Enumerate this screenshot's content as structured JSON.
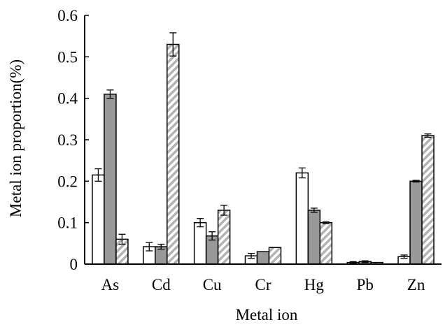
{
  "chart_data": {
    "type": "bar",
    "title": "",
    "xlabel": "Metal ion",
    "ylabel": "Metal ion proportion(%)",
    "ylim": [
      0,
      0.6
    ],
    "yticks": [
      "0",
      "0.1",
      "0.2",
      "0.3",
      "0.4",
      "0.5",
      "0.6"
    ],
    "categories": [
      "As",
      "Cd",
      "Cu",
      "Cr",
      "Hg",
      "Pb",
      "Zn"
    ],
    "grid": false,
    "legend": "none",
    "series": [
      {
        "fill": "white-outline",
        "values": [
          0.215,
          0.042,
          0.1,
          0.02,
          0.22,
          0.004,
          0.018
        ],
        "errors": [
          0.015,
          0.01,
          0.01,
          0.006,
          0.012,
          0.002,
          0.004
        ]
      },
      {
        "fill": "gray",
        "values": [
          0.41,
          0.042,
          0.068,
          0.03,
          0.13,
          0.006,
          0.2
        ],
        "errors": [
          0.01,
          0.006,
          0.01,
          0.0,
          0.005,
          0.002,
          0.002
        ]
      },
      {
        "fill": "hatched",
        "values": [
          0.06,
          0.53,
          0.13,
          0.04,
          0.1,
          0.004,
          0.31
        ],
        "errors": [
          0.012,
          0.028,
          0.012,
          0.0,
          0.002,
          0.0,
          0.004
        ]
      }
    ],
    "colors": {
      "gray": "#999999",
      "hatch": "#b3b3b3",
      "stroke": "#000000"
    }
  }
}
